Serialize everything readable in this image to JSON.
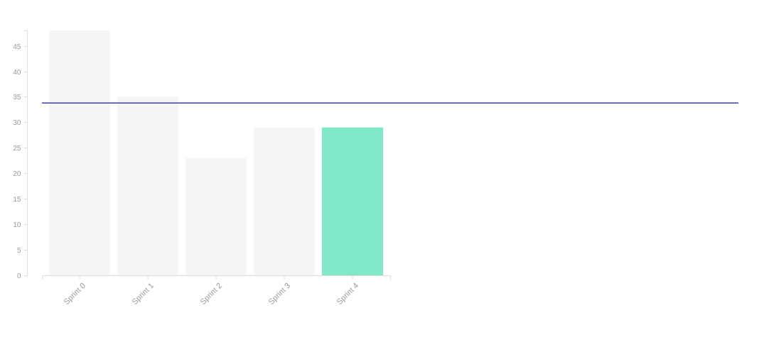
{
  "chart_data": {
    "type": "bar",
    "title": "",
    "xlabel": "",
    "ylabel": "",
    "categories": [
      "Sprint 0",
      "Sprint 1",
      "Sprint 2",
      "Sprint 3",
      "Sprint 4"
    ],
    "values": [
      48,
      35,
      23,
      29,
      29
    ],
    "ylim": [
      0,
      48
    ],
    "yticks": [
      0,
      5,
      10,
      15,
      20,
      25,
      30,
      35,
      40,
      45
    ],
    "reference_line": {
      "value": 33.8,
      "color": "#3f3fa5"
    },
    "bar_colors": [
      "#f4f5f7",
      "#f4f5f7",
      "#f4f5f7",
      "#f4f5f7",
      "#80e8c8"
    ],
    "highlight_index": 4,
    "grid": false,
    "axis_color": "#dddddd",
    "label_color": "#999999"
  }
}
